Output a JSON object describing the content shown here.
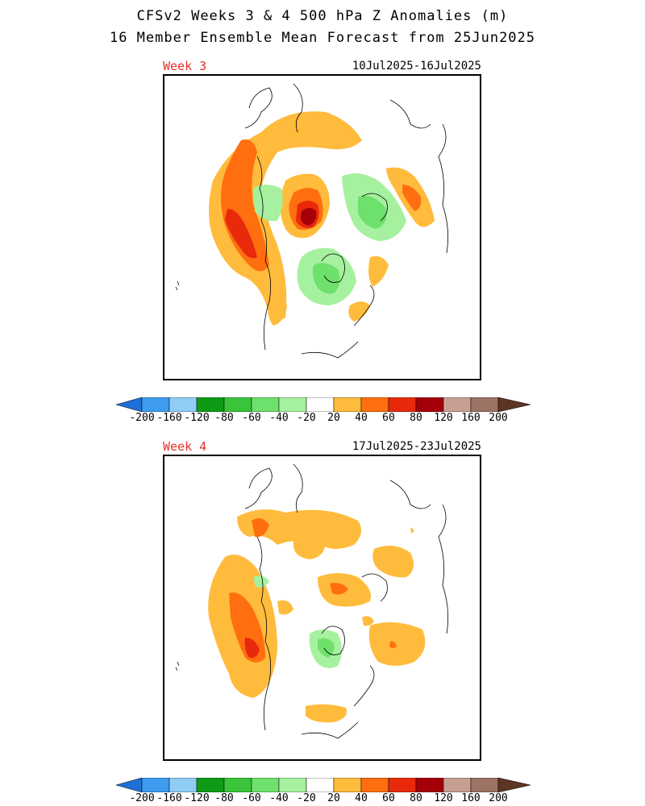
{
  "title_line1": "CFSv2 Weeks 3 & 4 500 hPa Z Anomalies (m)",
  "title_line2": "16 Member Ensemble Mean Forecast from 25Jun2025",
  "panels": [
    {
      "label": "Week 3",
      "date_range": "10Jul2025-16Jul2025"
    },
    {
      "label": "Week 4",
      "date_range": "17Jul2025-23Jul2025"
    }
  ],
  "units": "m",
  "colorbar": {
    "labels": [
      "-200",
      "-160",
      "-120",
      "-80",
      "-60",
      "-40",
      "-20",
      "20",
      "40",
      "60",
      "80",
      "120",
      "160",
      "200"
    ],
    "colors": [
      "#1e6fd8",
      "#3d9cf0",
      "#8fcdf5",
      "#0e9a14",
      "#39c43a",
      "#6ee06c",
      "#a6f19f",
      "#ffffff",
      "#ffbb3c",
      "#ff6e0f",
      "#e8290c",
      "#a5000a",
      "#c8a093",
      "#9c7364",
      "#5e3422"
    ]
  },
  "colors": {
    "week_label": "#e8302a",
    "coast": "#000000"
  }
}
